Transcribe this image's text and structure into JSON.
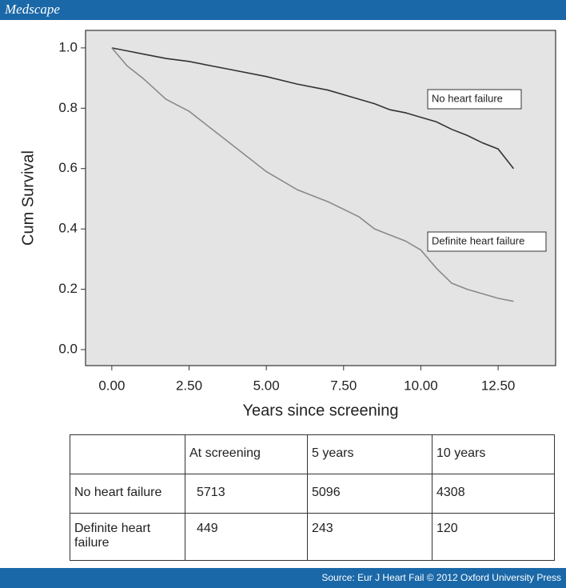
{
  "header": {
    "brand": "Medscape"
  },
  "chart_data": {
    "type": "line",
    "x_label": "Years since screening",
    "y_label": "Cum Survival",
    "x": [
      0,
      0.5,
      1,
      1.75,
      2.5,
      3.75,
      5,
      6,
      7,
      8,
      8.5,
      9,
      9.5,
      10,
      10.5,
      11,
      11.5,
      12,
      12.5,
      13
    ],
    "series": [
      {
        "name": "No heart failure",
        "color": "#333333",
        "values": [
          1.0,
          0.99,
          0.98,
          0.965,
          0.955,
          0.93,
          0.905,
          0.88,
          0.86,
          0.83,
          0.815,
          0.795,
          0.785,
          0.77,
          0.755,
          0.73,
          0.71,
          0.685,
          0.665,
          0.6
        ]
      },
      {
        "name": "Definite heart failure",
        "color": "#8a8a8a",
        "values": [
          1.0,
          0.94,
          0.9,
          0.83,
          0.79,
          0.69,
          0.59,
          0.53,
          0.49,
          0.44,
          0.4,
          0.38,
          0.36,
          0.33,
          0.27,
          0.22,
          0.2,
          0.185,
          0.17,
          0.16
        ]
      }
    ],
    "xlim": [
      -0.85,
      14.36
    ],
    "ylim": [
      -0.053,
      1.058
    ],
    "xticks": [
      {
        "value": 0,
        "label": "0.00"
      },
      {
        "value": 2.5,
        "label": "2.50"
      },
      {
        "value": 5,
        "label": "5.00"
      },
      {
        "value": 7.5,
        "label": "7.50"
      },
      {
        "value": 10,
        "label": "10.00"
      },
      {
        "value": 12.5,
        "label": "12.50"
      }
    ],
    "yticks": [
      {
        "value": 0,
        "label": "0.0"
      },
      0.2,
      0.4,
      0.6,
      0.8,
      {
        "value": 1,
        "label": "1.0"
      }
    ],
    "grid": false
  },
  "table": {
    "columns": [
      "At screening",
      "5 years",
      "10 years"
    ],
    "rows": [
      {
        "label": "No heart failure",
        "values": [
          5713,
          5096,
          4308
        ]
      },
      {
        "label": "Definite heart failure",
        "values": [
          449,
          243,
          120
        ]
      }
    ]
  },
  "footer": {
    "source": "Source: Eur J Heart Fail © 2012 Oxford University Press"
  }
}
